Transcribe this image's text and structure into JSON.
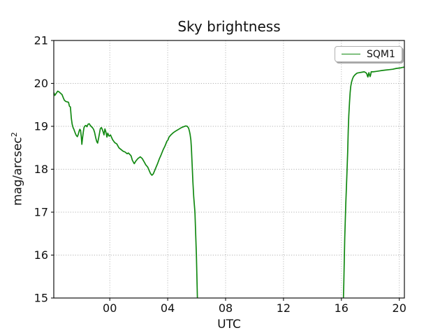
{
  "chart_data": {
    "type": "line",
    "title": "Sky brightness",
    "xlabel": "UTC",
    "ylabel": "mag/arcsec²",
    "ylabel_base": "mag/arcsec",
    "ylabel_sup": "2",
    "xlim": [
      -3.87,
      20.35
    ],
    "ylim": [
      15,
      21
    ],
    "grid": {
      "style": "dotted",
      "color": "#b3b3b3"
    },
    "legend": {
      "location": "upper right",
      "label": "SQM1"
    },
    "x_ticks": [
      {
        "v": 0,
        "label": "00"
      },
      {
        "v": 4,
        "label": "04"
      },
      {
        "v": 8,
        "label": "08"
      },
      {
        "v": 12,
        "label": "12"
      },
      {
        "v": 16,
        "label": "16"
      },
      {
        "v": 20,
        "label": "20"
      }
    ],
    "y_ticks": [
      {
        "v": 15,
        "label": "15"
      },
      {
        "v": 16,
        "label": "16"
      },
      {
        "v": 17,
        "label": "17"
      },
      {
        "v": 18,
        "label": "18"
      },
      {
        "v": 19,
        "label": "19"
      },
      {
        "v": 20,
        "label": "20"
      },
      {
        "v": 21,
        "label": "21"
      }
    ],
    "series": [
      {
        "name": "SQM1",
        "color": "#128912",
        "x_unit": "hours UTC (negative = previous evening)",
        "y_unit": "mag/arcsec²",
        "segments": [
          [
            [
              -3.86,
              19.78
            ],
            [
              -3.8,
              19.72
            ],
            [
              -3.72,
              19.76
            ],
            [
              -3.6,
              19.82
            ],
            [
              -3.5,
              19.8
            ],
            [
              -3.4,
              19.77
            ],
            [
              -3.3,
              19.74
            ],
            [
              -3.22,
              19.67
            ],
            [
              -3.14,
              19.61
            ],
            [
              -3.05,
              19.58
            ],
            [
              -2.95,
              19.57
            ],
            [
              -2.85,
              19.56
            ],
            [
              -2.79,
              19.47
            ],
            [
              -2.72,
              19.45
            ],
            [
              -2.66,
              19.19
            ],
            [
              -2.6,
              19.05
            ],
            [
              -2.54,
              18.97
            ],
            [
              -2.48,
              18.93
            ],
            [
              -2.42,
              18.87
            ],
            [
              -2.36,
              18.82
            ],
            [
              -2.3,
              18.78
            ],
            [
              -2.24,
              18.76
            ],
            [
              -2.18,
              18.81
            ],
            [
              -2.12,
              18.89
            ],
            [
              -2.07,
              18.93
            ],
            [
              -2.02,
              18.91
            ],
            [
              -1.97,
              18.76
            ],
            [
              -1.93,
              18.58
            ],
            [
              -1.88,
              18.73
            ],
            [
              -1.83,
              18.87
            ],
            [
              -1.78,
              18.97
            ],
            [
              -1.72,
              19.01
            ],
            [
              -1.65,
              19.02
            ],
            [
              -1.58,
              18.99
            ],
            [
              -1.5,
              19.05
            ],
            [
              -1.42,
              19.06
            ],
            [
              -1.34,
              19.02
            ],
            [
              -1.27,
              18.99
            ],
            [
              -1.2,
              18.97
            ],
            [
              -1.12,
              18.93
            ],
            [
              -1.05,
              18.86
            ],
            [
              -0.97,
              18.73
            ],
            [
              -0.9,
              18.64
            ],
            [
              -0.84,
              18.61
            ],
            [
              -0.78,
              18.71
            ],
            [
              -0.71,
              18.84
            ],
            [
              -0.65,
              18.95
            ],
            [
              -0.58,
              18.97
            ],
            [
              -0.52,
              18.93
            ],
            [
              -0.45,
              18.86
            ],
            [
              -0.4,
              18.8
            ],
            [
              -0.34,
              18.94
            ],
            [
              -0.27,
              18.87
            ],
            [
              -0.2,
              18.75
            ],
            [
              -0.14,
              18.84
            ],
            [
              -0.08,
              18.79
            ],
            [
              -0.04,
              18.77
            ],
            [
              0.05,
              18.8
            ],
            [
              0.19,
              18.69
            ],
            [
              0.34,
              18.62
            ],
            [
              0.48,
              18.59
            ],
            [
              0.63,
              18.5
            ],
            [
              0.77,
              18.46
            ],
            [
              0.92,
              18.42
            ],
            [
              1.06,
              18.4
            ],
            [
              1.2,
              18.36
            ],
            [
              1.28,
              18.38
            ],
            [
              1.4,
              18.34
            ],
            [
              1.47,
              18.31
            ],
            [
              1.56,
              18.21
            ],
            [
              1.69,
              18.13
            ],
            [
              1.82,
              18.2
            ],
            [
              1.95,
              18.25
            ],
            [
              2.11,
              18.29
            ],
            [
              2.24,
              18.25
            ],
            [
              2.36,
              18.18
            ],
            [
              2.49,
              18.1
            ],
            [
              2.62,
              18.05
            ],
            [
              2.72,
              17.97
            ],
            [
              2.81,
              17.9
            ],
            [
              2.91,
              17.86
            ],
            [
              3.0,
              17.89
            ],
            [
              3.1,
              17.97
            ],
            [
              3.2,
              18.05
            ],
            [
              3.3,
              18.13
            ],
            [
              3.42,
              18.24
            ],
            [
              3.55,
              18.34
            ],
            [
              3.68,
              18.45
            ],
            [
              3.81,
              18.54
            ],
            [
              3.94,
              18.65
            ],
            [
              4.03,
              18.69
            ],
            [
              4.09,
              18.75
            ],
            [
              4.22,
              18.8
            ],
            [
              4.38,
              18.85
            ],
            [
              4.55,
              18.89
            ],
            [
              4.75,
              18.93
            ],
            [
              4.95,
              18.97
            ],
            [
              5.1,
              18.99
            ],
            [
              5.25,
              19.01
            ],
            [
              5.35,
              19.0
            ],
            [
              5.44,
              18.96
            ],
            [
              5.5,
              18.89
            ],
            [
              5.55,
              18.81
            ],
            [
              5.6,
              18.68
            ],
            [
              5.64,
              18.48
            ],
            [
              5.67,
              18.25
            ],
            [
              5.7,
              18.0
            ],
            [
              5.74,
              17.7
            ],
            [
              5.8,
              17.35
            ],
            [
              5.88,
              17.0
            ],
            [
              5.98,
              16.0
            ],
            [
              6.05,
              15.02
            ],
            [
              6.08,
              14.6
            ]
          ],
          [
            [
              16.12,
              14.6
            ],
            [
              16.14,
              15.0
            ],
            [
              16.16,
              15.3
            ],
            [
              16.23,
              16.4
            ],
            [
              16.3,
              17.2
            ],
            [
              16.37,
              17.8
            ],
            [
              16.43,
              18.4
            ],
            [
              16.47,
              18.9
            ],
            [
              16.51,
              19.25
            ],
            [
              16.56,
              19.55
            ],
            [
              16.6,
              19.78
            ],
            [
              16.64,
              19.92
            ],
            [
              16.7,
              20.03
            ],
            [
              16.77,
              20.11
            ],
            [
              16.84,
              20.16
            ],
            [
              16.91,
              20.19
            ],
            [
              17.0,
              20.22
            ],
            [
              17.09,
              20.24
            ],
            [
              17.25,
              20.25
            ],
            [
              17.4,
              20.26
            ],
            [
              17.57,
              20.27
            ],
            [
              17.69,
              20.25
            ],
            [
              17.76,
              20.22
            ],
            [
              17.8,
              20.17
            ],
            [
              17.83,
              20.15
            ],
            [
              17.87,
              20.22
            ],
            [
              17.9,
              20.25
            ],
            [
              17.94,
              20.2
            ],
            [
              17.98,
              20.16
            ],
            [
              18.02,
              20.2
            ],
            [
              18.06,
              20.27
            ],
            [
              18.2,
              20.27
            ],
            [
              18.4,
              20.28
            ],
            [
              18.6,
              20.29
            ],
            [
              18.8,
              20.3
            ],
            [
              19.05,
              20.31
            ],
            [
              19.3,
              20.32
            ],
            [
              19.55,
              20.33
            ],
            [
              19.8,
              20.35
            ],
            [
              20.05,
              20.36
            ],
            [
              20.2,
              20.37
            ],
            [
              20.35,
              20.38
            ]
          ]
        ]
      }
    ]
  }
}
